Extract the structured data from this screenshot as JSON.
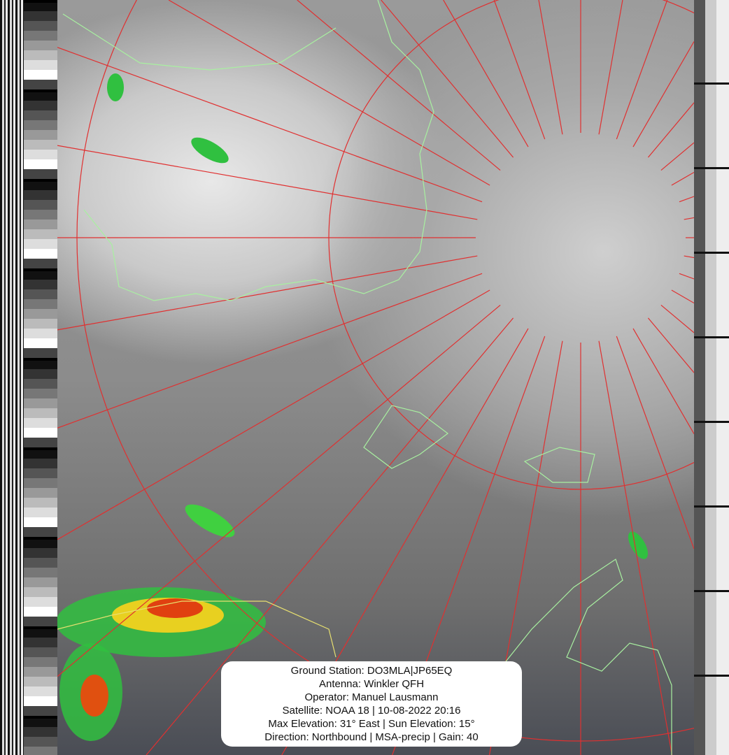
{
  "info": {
    "ground_station": "Ground Station: DO3MLA|JP65EQ",
    "antenna": "Antenna: Winkler QFH",
    "operator": "Operator: Manuel Lausmann",
    "satellite": "Satellite: NOAA 18 | 10-08-2022 20:16",
    "elevation": "Max Elevation: 31° East | Sun Elevation: 15°",
    "direction": "Direction: Northbound | MSA-precip | Gain: 40"
  },
  "colors": {
    "graticule": "#e03030",
    "coastline": "#a8f0a0",
    "border": "#e8e070",
    "precip_low": "#30d040",
    "precip_mid": "#f0e020",
    "precip_high": "#e03010"
  }
}
